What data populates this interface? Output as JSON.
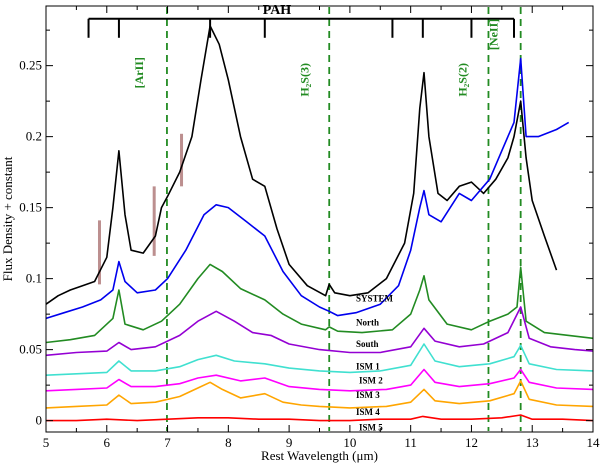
{
  "chart_data": {
    "type": "line",
    "xlabel": "Rest Wavelength (μm)",
    "ylabel": "Flux Density + constant",
    "xlim": [
      5,
      14
    ],
    "ylim": [
      -0.008,
      0.292
    ],
    "xticks": [
      "5",
      "6",
      "7",
      "8",
      "9",
      "10",
      "11",
      "12",
      "13",
      "14"
    ],
    "yticks": [
      "0",
      "0.05",
      "0.1",
      "0.15",
      "0.2",
      "0.25"
    ],
    "ytick_values": [
      0,
      0.05,
      0.1,
      0.15,
      0.2,
      0.25
    ],
    "pah": {
      "label": "PAH",
      "bar_y": 0.283,
      "x_start": 5.7,
      "x_end": 12.7,
      "features": [
        5.7,
        6.2,
        7.7,
        8.6,
        10.7,
        11.2,
        12.0,
        12.7
      ]
    },
    "emission_lines": [
      {
        "label": "[ArII]",
        "wavelength": 6.99,
        "label_x": 6.6,
        "label_y": 0.245
      },
      {
        "label": "H₂S(3)",
        "wavelength": 9.66,
        "label_x": 9.32,
        "label_y": 0.24
      },
      {
        "label": "H₂S(2)",
        "wavelength": 12.28,
        "label_x": 11.92,
        "label_y": 0.24
      },
      {
        "label": "[NeII]",
        "wavelength": 12.81,
        "label_x": 12.43,
        "label_y": 0.272
      }
    ],
    "absorption_bars": [
      {
        "x": 5.88,
        "y0": 0.096,
        "y1": 0.141
      },
      {
        "x": 6.78,
        "y0": 0.116,
        "y1": 0.165
      },
      {
        "x": 7.23,
        "y0": 0.165,
        "y1": 0.202
      }
    ],
    "series": [
      {
        "name": "SYSTEM",
        "color": "#000000",
        "label_x": 10.1,
        "label_y": 0.084,
        "x": [
          5.0,
          5.2,
          5.4,
          5.6,
          5.8,
          6.0,
          6.1,
          6.2,
          6.3,
          6.4,
          6.6,
          6.8,
          6.9,
          7.0,
          7.2,
          7.4,
          7.55,
          7.7,
          7.85,
          8.0,
          8.2,
          8.4,
          8.6,
          8.8,
          9.0,
          9.3,
          9.6,
          9.66,
          9.75,
          10.0,
          10.3,
          10.6,
          10.9,
          11.05,
          11.15,
          11.22,
          11.3,
          11.45,
          11.6,
          11.8,
          12.0,
          12.2,
          12.4,
          12.6,
          12.7,
          12.81,
          12.9,
          13.0,
          13.2,
          13.4
        ],
        "y": [
          0.082,
          0.088,
          0.092,
          0.095,
          0.098,
          0.115,
          0.15,
          0.19,
          0.145,
          0.12,
          0.118,
          0.13,
          0.15,
          0.158,
          0.175,
          0.2,
          0.24,
          0.278,
          0.265,
          0.24,
          0.2,
          0.17,
          0.165,
          0.135,
          0.11,
          0.095,
          0.088,
          0.096,
          0.09,
          0.088,
          0.09,
          0.1,
          0.125,
          0.16,
          0.22,
          0.245,
          0.2,
          0.16,
          0.155,
          0.165,
          0.168,
          0.16,
          0.17,
          0.185,
          0.2,
          0.225,
          0.185,
          0.155,
          0.13,
          0.106
        ]
      },
      {
        "name": "North",
        "color": "#0000ee",
        "label_x": 10.1,
        "label_y": 0.067,
        "x": [
          5.0,
          5.3,
          5.6,
          5.9,
          6.1,
          6.2,
          6.3,
          6.5,
          6.8,
          7.0,
          7.3,
          7.6,
          7.8,
          8.0,
          8.3,
          8.6,
          8.9,
          9.2,
          9.5,
          9.66,
          9.8,
          10.1,
          10.5,
          10.8,
          11.0,
          11.15,
          11.22,
          11.3,
          11.5,
          11.8,
          12.0,
          12.3,
          12.5,
          12.7,
          12.81,
          12.9,
          13.1,
          13.4,
          13.6
        ],
        "y": [
          0.072,
          0.076,
          0.08,
          0.085,
          0.092,
          0.112,
          0.098,
          0.09,
          0.092,
          0.1,
          0.12,
          0.145,
          0.152,
          0.15,
          0.14,
          0.13,
          0.105,
          0.088,
          0.08,
          0.077,
          0.074,
          0.076,
          0.082,
          0.095,
          0.12,
          0.15,
          0.162,
          0.145,
          0.14,
          0.16,
          0.155,
          0.17,
          0.19,
          0.21,
          0.255,
          0.2,
          0.2,
          0.205,
          0.21
        ]
      },
      {
        "name": "South",
        "color": "#228b22",
        "label_x": 10.1,
        "label_y": 0.052,
        "x": [
          5.0,
          5.4,
          5.8,
          6.1,
          6.2,
          6.3,
          6.6,
          6.9,
          7.2,
          7.5,
          7.7,
          7.9,
          8.2,
          8.6,
          8.9,
          9.2,
          9.6,
          9.66,
          9.8,
          10.2,
          10.7,
          11.0,
          11.15,
          11.22,
          11.3,
          11.6,
          12.0,
          12.3,
          12.6,
          12.75,
          12.81,
          12.9,
          13.2,
          13.6,
          14.0
        ],
        "y": [
          0.055,
          0.057,
          0.06,
          0.072,
          0.092,
          0.068,
          0.064,
          0.07,
          0.082,
          0.1,
          0.11,
          0.105,
          0.093,
          0.085,
          0.075,
          0.068,
          0.064,
          0.066,
          0.063,
          0.062,
          0.064,
          0.075,
          0.092,
          0.102,
          0.085,
          0.068,
          0.064,
          0.07,
          0.075,
          0.08,
          0.108,
          0.07,
          0.062,
          0.06,
          0.058
        ]
      },
      {
        "name": "ISM 1",
        "color": "#9400d3",
        "label_x": 10.1,
        "label_y": 0.036,
        "x": [
          5.0,
          5.5,
          6.0,
          6.2,
          6.4,
          6.8,
          7.2,
          7.5,
          7.8,
          8.1,
          8.4,
          8.7,
          9.0,
          9.5,
          10.0,
          10.5,
          11.0,
          11.22,
          11.4,
          11.8,
          12.2,
          12.6,
          12.81,
          12.95,
          13.3,
          13.7,
          14.0
        ],
        "y": [
          0.046,
          0.048,
          0.049,
          0.055,
          0.05,
          0.052,
          0.06,
          0.07,
          0.077,
          0.07,
          0.062,
          0.06,
          0.054,
          0.05,
          0.048,
          0.048,
          0.052,
          0.065,
          0.056,
          0.052,
          0.054,
          0.062,
          0.08,
          0.058,
          0.052,
          0.05,
          0.049
        ]
      },
      {
        "name": "ISM 2",
        "color": "#40e0d0",
        "label_x": 10.15,
        "label_y": 0.026,
        "x": [
          5.0,
          5.5,
          6.0,
          6.2,
          6.4,
          6.8,
          7.2,
          7.5,
          7.8,
          8.1,
          8.6,
          9.0,
          9.5,
          10.0,
          10.5,
          11.0,
          11.22,
          11.4,
          11.8,
          12.3,
          12.7,
          12.81,
          12.95,
          13.4,
          14.0
        ],
        "y": [
          0.032,
          0.033,
          0.034,
          0.042,
          0.035,
          0.035,
          0.038,
          0.043,
          0.046,
          0.042,
          0.04,
          0.037,
          0.035,
          0.034,
          0.035,
          0.039,
          0.054,
          0.042,
          0.038,
          0.04,
          0.045,
          0.053,
          0.04,
          0.036,
          0.035
        ]
      },
      {
        "name": "ISM 3",
        "color": "#ff00ff",
        "label_x": 10.1,
        "label_y": 0.016,
        "x": [
          5.0,
          5.5,
          6.0,
          6.2,
          6.4,
          6.8,
          7.2,
          7.5,
          7.8,
          8.2,
          8.6,
          9.0,
          9.5,
          10.0,
          10.6,
          11.0,
          11.22,
          11.4,
          11.8,
          12.3,
          12.7,
          12.81,
          12.95,
          13.4,
          14.0
        ],
        "y": [
          0.021,
          0.022,
          0.023,
          0.029,
          0.024,
          0.024,
          0.026,
          0.03,
          0.032,
          0.028,
          0.03,
          0.024,
          0.022,
          0.021,
          0.022,
          0.025,
          0.036,
          0.027,
          0.024,
          0.026,
          0.03,
          0.036,
          0.027,
          0.023,
          0.022
        ]
      },
      {
        "name": "ISM 4",
        "color": "#ffa500",
        "label_x": 10.1,
        "label_y": 0.004,
        "x": [
          5.0,
          5.5,
          6.0,
          6.2,
          6.4,
          6.8,
          7.2,
          7.5,
          7.7,
          7.9,
          8.2,
          8.6,
          8.9,
          9.2,
          9.5,
          10.0,
          10.6,
          11.0,
          11.22,
          11.4,
          11.8,
          12.3,
          12.7,
          12.81,
          12.95,
          13.4,
          14.0
        ],
        "y": [
          0.009,
          0.01,
          0.011,
          0.018,
          0.012,
          0.013,
          0.017,
          0.023,
          0.027,
          0.022,
          0.016,
          0.019,
          0.013,
          0.011,
          0.01,
          0.009,
          0.01,
          0.013,
          0.022,
          0.014,
          0.012,
          0.014,
          0.019,
          0.028,
          0.015,
          0.011,
          0.01
        ]
      },
      {
        "name": "ISM 5",
        "color": "#ff0000",
        "label_x": 10.15,
        "label_y": -0.007,
        "x": [
          5.0,
          5.5,
          6.0,
          6.5,
          7.0,
          7.5,
          8.0,
          8.5,
          9.0,
          9.5,
          10.0,
          10.5,
          11.0,
          11.2,
          11.5,
          12.0,
          12.5,
          12.81,
          13.0,
          13.5,
          14.0
        ],
        "y": [
          0.0,
          0.0,
          0.001,
          0.0,
          0.001,
          0.002,
          0.002,
          0.001,
          0.001,
          0.0,
          0.0,
          0.001,
          0.001,
          0.003,
          0.001,
          0.001,
          0.002,
          0.004,
          0.001,
          0.001,
          0.0
        ]
      }
    ]
  }
}
